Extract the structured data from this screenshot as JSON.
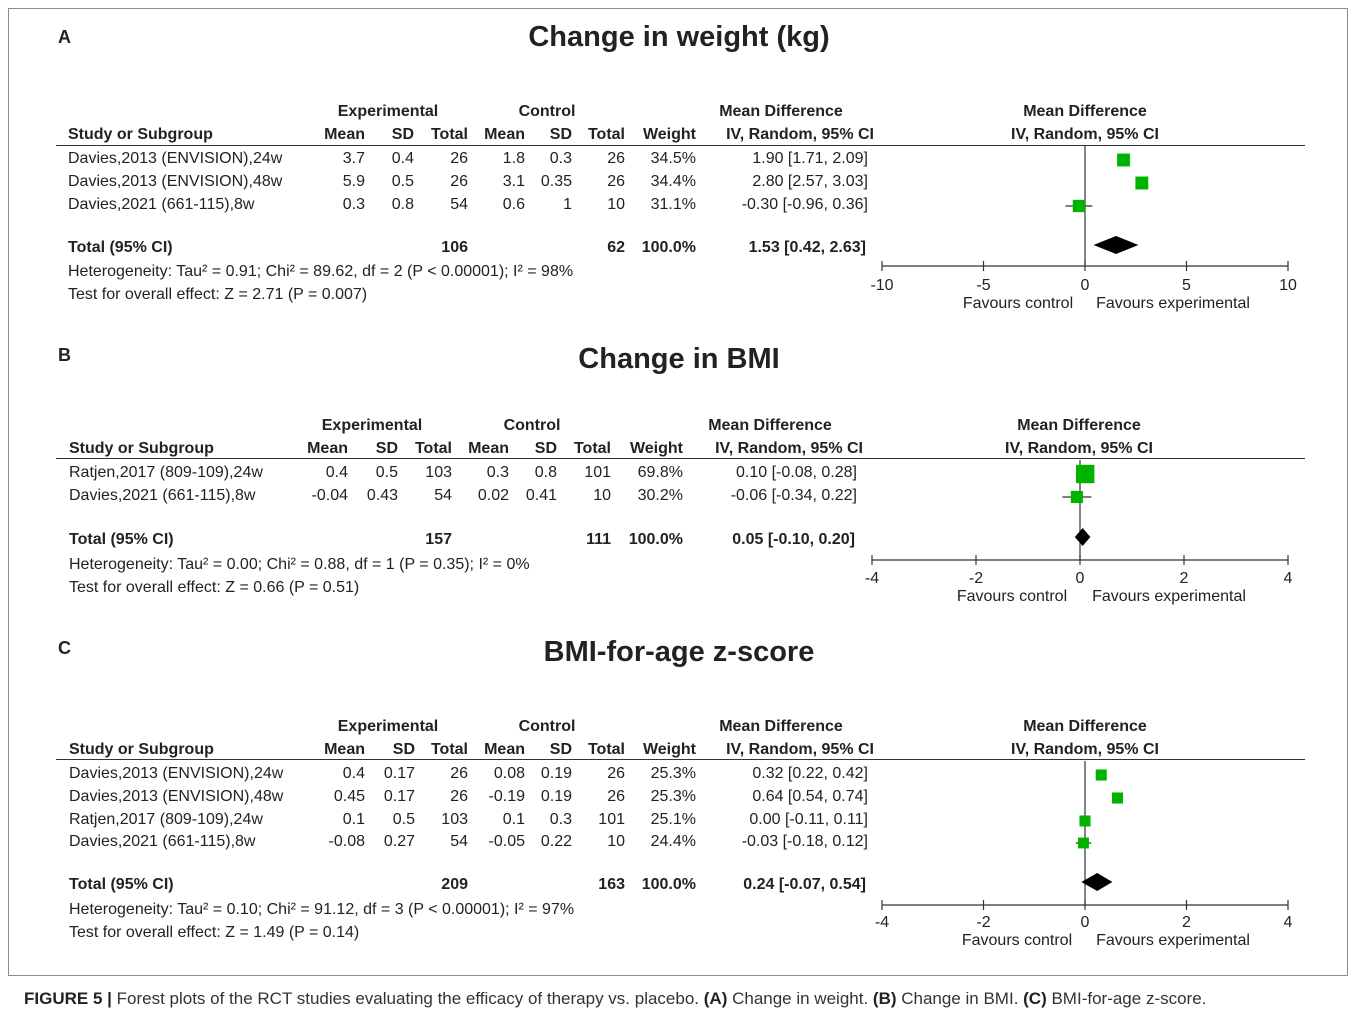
{
  "colors": {
    "marker": "#00b300",
    "line": "#333333",
    "diamond": "#000000",
    "frame": "#8c8c8c"
  },
  "panels": [
    {
      "letter": "A",
      "title": "Change in weight (kg)",
      "group_exp": "Experimental",
      "group_ctl": "Control",
      "md_header1": "Mean Difference",
      "md_header2": "IV, Random, 95% CI",
      "plot_header1": "Mean Difference",
      "plot_header2": "IV, Random, 95% CI",
      "col_study": "Study or Subgroup",
      "col_mean": "Mean",
      "col_sd": "SD",
      "col_total": "Total",
      "col_mean2": "Mean",
      "col_sd2": "SD",
      "col_total2": "Total",
      "col_weight": "Weight",
      "rows": [
        {
          "study": "Davies,2013 (ENVISION),24w",
          "e_mean": "3.7",
          "e_sd": "0.4",
          "e_total": "26",
          "c_mean": "1.8",
          "c_sd": "0.3",
          "c_total": "26",
          "weight": "34.5%",
          "ci": "1.90 [1.71, 2.09]"
        },
        {
          "study": "Davies,2013 (ENVISION),48w",
          "e_mean": "5.9",
          "e_sd": "0.5",
          "e_total": "26",
          "c_mean": "3.1",
          "c_sd": "0.35",
          "c_total": "26",
          "weight": "34.4%",
          "ci": "2.80 [2.57, 3.03]"
        },
        {
          "study": "Davies,2021 (661-115),8w",
          "e_mean": "0.3",
          "e_sd": "0.8",
          "e_total": "54",
          "c_mean": "0.6",
          "c_sd": "1",
          "c_total": "10",
          "weight": "31.1%",
          "ci": "-0.30 [-0.96, 0.36]"
        }
      ],
      "total": {
        "label": "Total (95% CI)",
        "e_total": "106",
        "c_total": "62",
        "weight": "100.0%",
        "ci": "1.53 [0.42, 2.63]"
      },
      "heterogeneity": "Heterogeneity: Tau² = 0.91; Chi² = 89.62, df = 2 (P < 0.00001); I² = 98%",
      "overall": "Test for overall effect: Z = 2.71 (P = 0.007)",
      "favours_left": "Favours control",
      "favours_right": "Favours experimental"
    },
    {
      "letter": "B",
      "title": "Change in BMI",
      "group_exp": "Experimental",
      "group_ctl": "Control",
      "md_header1": "Mean Difference",
      "md_header2": "IV, Random, 95% CI",
      "plot_header1": "Mean Difference",
      "plot_header2": "IV, Random, 95% CI",
      "col_study": "Study or Subgroup",
      "col_mean": "Mean",
      "col_sd": "SD",
      "col_total": "Total",
      "col_mean2": "Mean",
      "col_sd2": "SD",
      "col_total2": "Total",
      "col_weight": "Weight",
      "rows": [
        {
          "study": "Ratjen,2017 (809-109),24w",
          "e_mean": "0.4",
          "e_sd": "0.5",
          "e_total": "103",
          "c_mean": "0.3",
          "c_sd": "0.8",
          "c_total": "101",
          "weight": "69.8%",
          "ci": "0.10 [-0.08, 0.28]"
        },
        {
          "study": "Davies,2021 (661-115),8w",
          "e_mean": "-0.04",
          "e_sd": "0.43",
          "e_total": "54",
          "c_mean": "0.02",
          "c_sd": "0.41",
          "c_total": "10",
          "weight": "30.2%",
          "ci": "-0.06 [-0.34, 0.22]"
        }
      ],
      "total": {
        "label": "Total (95% CI)",
        "e_total": "157",
        "c_total": "111",
        "weight": "100.0%",
        "ci": "0.05 [-0.10, 0.20]"
      },
      "heterogeneity": "Heterogeneity: Tau² = 0.00; Chi² = 0.88, df = 1 (P = 0.35); I² = 0%",
      "overall": "Test for overall effect: Z = 0.66 (P = 0.51)",
      "favours_left": "Favours control",
      "favours_right": "Favours experimental"
    },
    {
      "letter": "C",
      "title": "BMI-for-age z-score",
      "group_exp": "Experimental",
      "group_ctl": "Control",
      "md_header1": "Mean Difference",
      "md_header2": "IV, Random, 95% CI",
      "plot_header1": "Mean Difference",
      "plot_header2": "IV, Random, 95% CI",
      "col_study": "Study or Subgroup",
      "col_mean": "Mean",
      "col_sd": "SD",
      "col_total": "Total",
      "col_mean2": "Mean",
      "col_sd2": "SD",
      "col_total2": "Total",
      "col_weight": "Weight",
      "rows": [
        {
          "study": "Davies,2013 (ENVISION),24w",
          "e_mean": "0.4",
          "e_sd": "0.17",
          "e_total": "26",
          "c_mean": "0.08",
          "c_sd": "0.19",
          "c_total": "26",
          "weight": "25.3%",
          "ci": "0.32 [0.22, 0.42]"
        },
        {
          "study": "Davies,2013 (ENVISION),48w",
          "e_mean": "0.45",
          "e_sd": "0.17",
          "e_total": "26",
          "c_mean": "-0.19",
          "c_sd": "0.19",
          "c_total": "26",
          "weight": "25.3%",
          "ci": "0.64 [0.54, 0.74]"
        },
        {
          "study": "Ratjen,2017 (809-109),24w",
          "e_mean": "0.1",
          "e_sd": "0.5",
          "e_total": "103",
          "c_mean": "0.1",
          "c_sd": "0.3",
          "c_total": "101",
          "weight": "25.1%",
          "ci": "0.00 [-0.11, 0.11]"
        },
        {
          "study": "Davies,2021 (661-115),8w",
          "e_mean": "-0.08",
          "e_sd": "0.27",
          "e_total": "54",
          "c_mean": "-0.05",
          "c_sd": "0.22",
          "c_total": "10",
          "weight": "24.4%",
          "ci": "-0.03 [-0.18, 0.12]"
        }
      ],
      "total": {
        "label": "Total (95% CI)",
        "e_total": "209",
        "c_total": "163",
        "weight": "100.0%",
        "ci": "0.24 [-0.07, 0.54]"
      },
      "heterogeneity": "Heterogeneity: Tau² = 0.10; Chi² = 91.12, df = 3 (P < 0.00001); I² = 97%",
      "overall": "Test for overall effect: Z = 1.49 (P = 0.14)",
      "favours_left": "Favours control",
      "favours_right": "Favours experimental"
    }
  ],
  "chart_data": [
    {
      "type": "forest",
      "xlim": [
        -10,
        10
      ],
      "ticks": [
        -10,
        -5,
        0,
        5,
        10
      ],
      "tick_labels": [
        "-10",
        "-5",
        "0",
        "5",
        "10"
      ],
      "estimates": [
        {
          "md": 1.9,
          "lo": 1.71,
          "hi": 2.09,
          "weight": 34.5
        },
        {
          "md": 2.8,
          "lo": 2.57,
          "hi": 3.03,
          "weight": 34.4
        },
        {
          "md": -0.3,
          "lo": -0.96,
          "hi": 0.36,
          "weight": 31.1
        }
      ],
      "pooled": {
        "md": 1.53,
        "lo": 0.42,
        "hi": 2.63
      }
    },
    {
      "type": "forest",
      "xlim": [
        -4,
        4
      ],
      "ticks": [
        -4,
        -2,
        0,
        2,
        4
      ],
      "tick_labels": [
        "-4",
        "-2",
        "0",
        "2",
        "4"
      ],
      "estimates": [
        {
          "md": 0.1,
          "lo": -0.08,
          "hi": 0.28,
          "weight": 69.8
        },
        {
          "md": -0.06,
          "lo": -0.34,
          "hi": 0.22,
          "weight": 30.2
        }
      ],
      "pooled": {
        "md": 0.05,
        "lo": -0.1,
        "hi": 0.2
      }
    },
    {
      "type": "forest",
      "xlim": [
        -4,
        4
      ],
      "ticks": [
        -4,
        -2,
        0,
        2,
        4
      ],
      "tick_labels": [
        "-4",
        "-2",
        "0",
        "2",
        "4"
      ],
      "estimates": [
        {
          "md": 0.32,
          "lo": 0.22,
          "hi": 0.42,
          "weight": 25.3
        },
        {
          "md": 0.64,
          "lo": 0.54,
          "hi": 0.74,
          "weight": 25.3
        },
        {
          "md": 0.0,
          "lo": -0.11,
          "hi": 0.11,
          "weight": 25.1
        },
        {
          "md": -0.03,
          "lo": -0.18,
          "hi": 0.12,
          "weight": 24.4
        }
      ],
      "pooled": {
        "md": 0.24,
        "lo": -0.07,
        "hi": 0.54
      }
    }
  ],
  "caption": {
    "fig_label": "FIGURE 5 |",
    "intro": " Forest plots of the RCT studies evaluating the efficacy of therapy vs. placebo. ",
    "a_label": "(A)",
    "a_text": " Change in weight. ",
    "b_label": "(B)",
    "b_text": " Change in BMI. ",
    "c_label": "(C)",
    "c_text": " BMI-for-age z-score."
  }
}
